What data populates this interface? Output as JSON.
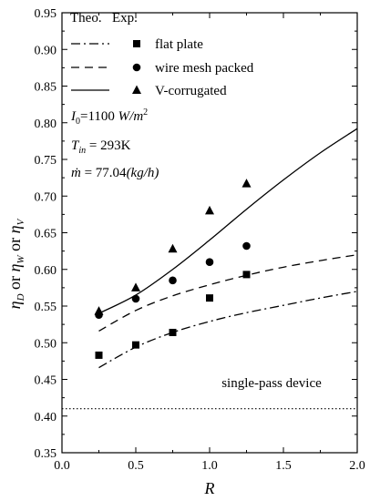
{
  "chart_data": {
    "type": "scatter",
    "xlabel": "R",
    "ylabel": {
      "eta": "η",
      "sub_d": "D",
      "sub_w": "W",
      "sub_v": "V",
      "or1": " or ",
      "or2": " or "
    },
    "xlim": [
      0.0,
      2.0
    ],
    "ylim": [
      0.35,
      0.95
    ],
    "x_ticks": [
      "0.0",
      "0.5",
      "1.0",
      "1.5",
      "2.0"
    ],
    "y_ticks": [
      "0.35",
      "0.40",
      "0.45",
      "0.50",
      "0.55",
      "0.60",
      "0.65",
      "0.70",
      "0.75",
      "0.80",
      "0.85",
      "0.90",
      "0.95"
    ],
    "legend_header": {
      "theo": "Theo.",
      "exp": "Exp."
    },
    "legend_position": "top-left",
    "series": [
      {
        "name": "flat plate",
        "marker": "square",
        "line_style": "dash-dot",
        "theo": {
          "x": [
            0.25,
            0.5,
            0.75,
            1.0,
            1.25,
            1.5,
            1.75,
            2.0
          ],
          "y": [
            0.466,
            0.494,
            0.514,
            0.529,
            0.541,
            0.551,
            0.561,
            0.57
          ]
        },
        "exp": {
          "x": [
            0.25,
            0.5,
            0.75,
            1.0,
            1.25
          ],
          "y": [
            0.483,
            0.497,
            0.514,
            0.561,
            0.593
          ]
        }
      },
      {
        "name": "wire mesh packed",
        "marker": "circle",
        "line_style": "dashed",
        "theo": {
          "x": [
            0.25,
            0.5,
            0.75,
            1.0,
            1.25,
            1.5,
            1.75,
            2.0
          ],
          "y": [
            0.516,
            0.544,
            0.564,
            0.579,
            0.592,
            0.603,
            0.612,
            0.62
          ]
        },
        "exp": {
          "x": [
            0.25,
            0.5,
            0.75,
            1.0,
            1.25
          ],
          "y": [
            0.538,
            0.56,
            0.585,
            0.61,
            0.632
          ]
        }
      },
      {
        "name": "V-corrugated",
        "marker": "triangle",
        "line_style": "solid",
        "theo": {
          "x": [
            0.25,
            0.5,
            0.75,
            1.0,
            1.25,
            1.5,
            1.75,
            2.0
          ],
          "y": [
            0.54,
            0.565,
            0.6,
            0.64,
            0.682,
            0.722,
            0.759,
            0.792
          ]
        },
        "exp": {
          "x": [
            0.25,
            0.5,
            0.75,
            1.0,
            1.25
          ],
          "y": [
            0.543,
            0.575,
            0.628,
            0.68,
            0.717
          ]
        }
      }
    ],
    "reference_line": {
      "label": "single-pass device",
      "y": 0.41,
      "style": "dotted"
    },
    "annotations": {
      "i0": {
        "main": "I",
        "sub": "0",
        "eq": "=1100 ",
        "unit": "W/m",
        "sup": "2"
      },
      "tin": {
        "main": "T",
        "sub": "in",
        "eq": " = 293K"
      },
      "mdot": {
        "main": "ṁ",
        "eq": " = 77.04",
        "unit": "(kg/h)"
      }
    },
    "grid": false
  }
}
